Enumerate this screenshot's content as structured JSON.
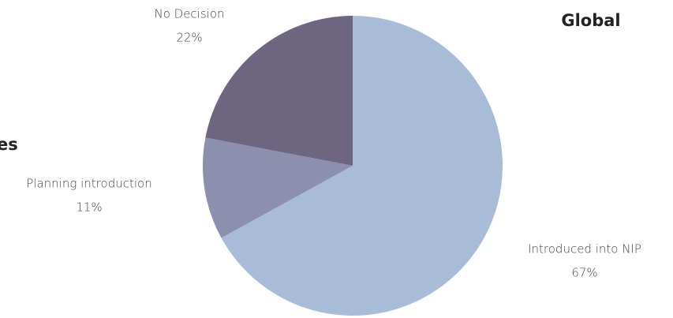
{
  "chart_data": {
    "type": "pie",
    "title": "Global",
    "annotation": "es",
    "categories": [
      "Introduced into NIP",
      "Planning introduction",
      "No Decision"
    ],
    "values": [
      67,
      11,
      22
    ],
    "value_labels": [
      "67%",
      "11%",
      "22%"
    ],
    "colors": [
      "#a8bcd8",
      "#8c8fae",
      "#6e6680"
    ]
  }
}
